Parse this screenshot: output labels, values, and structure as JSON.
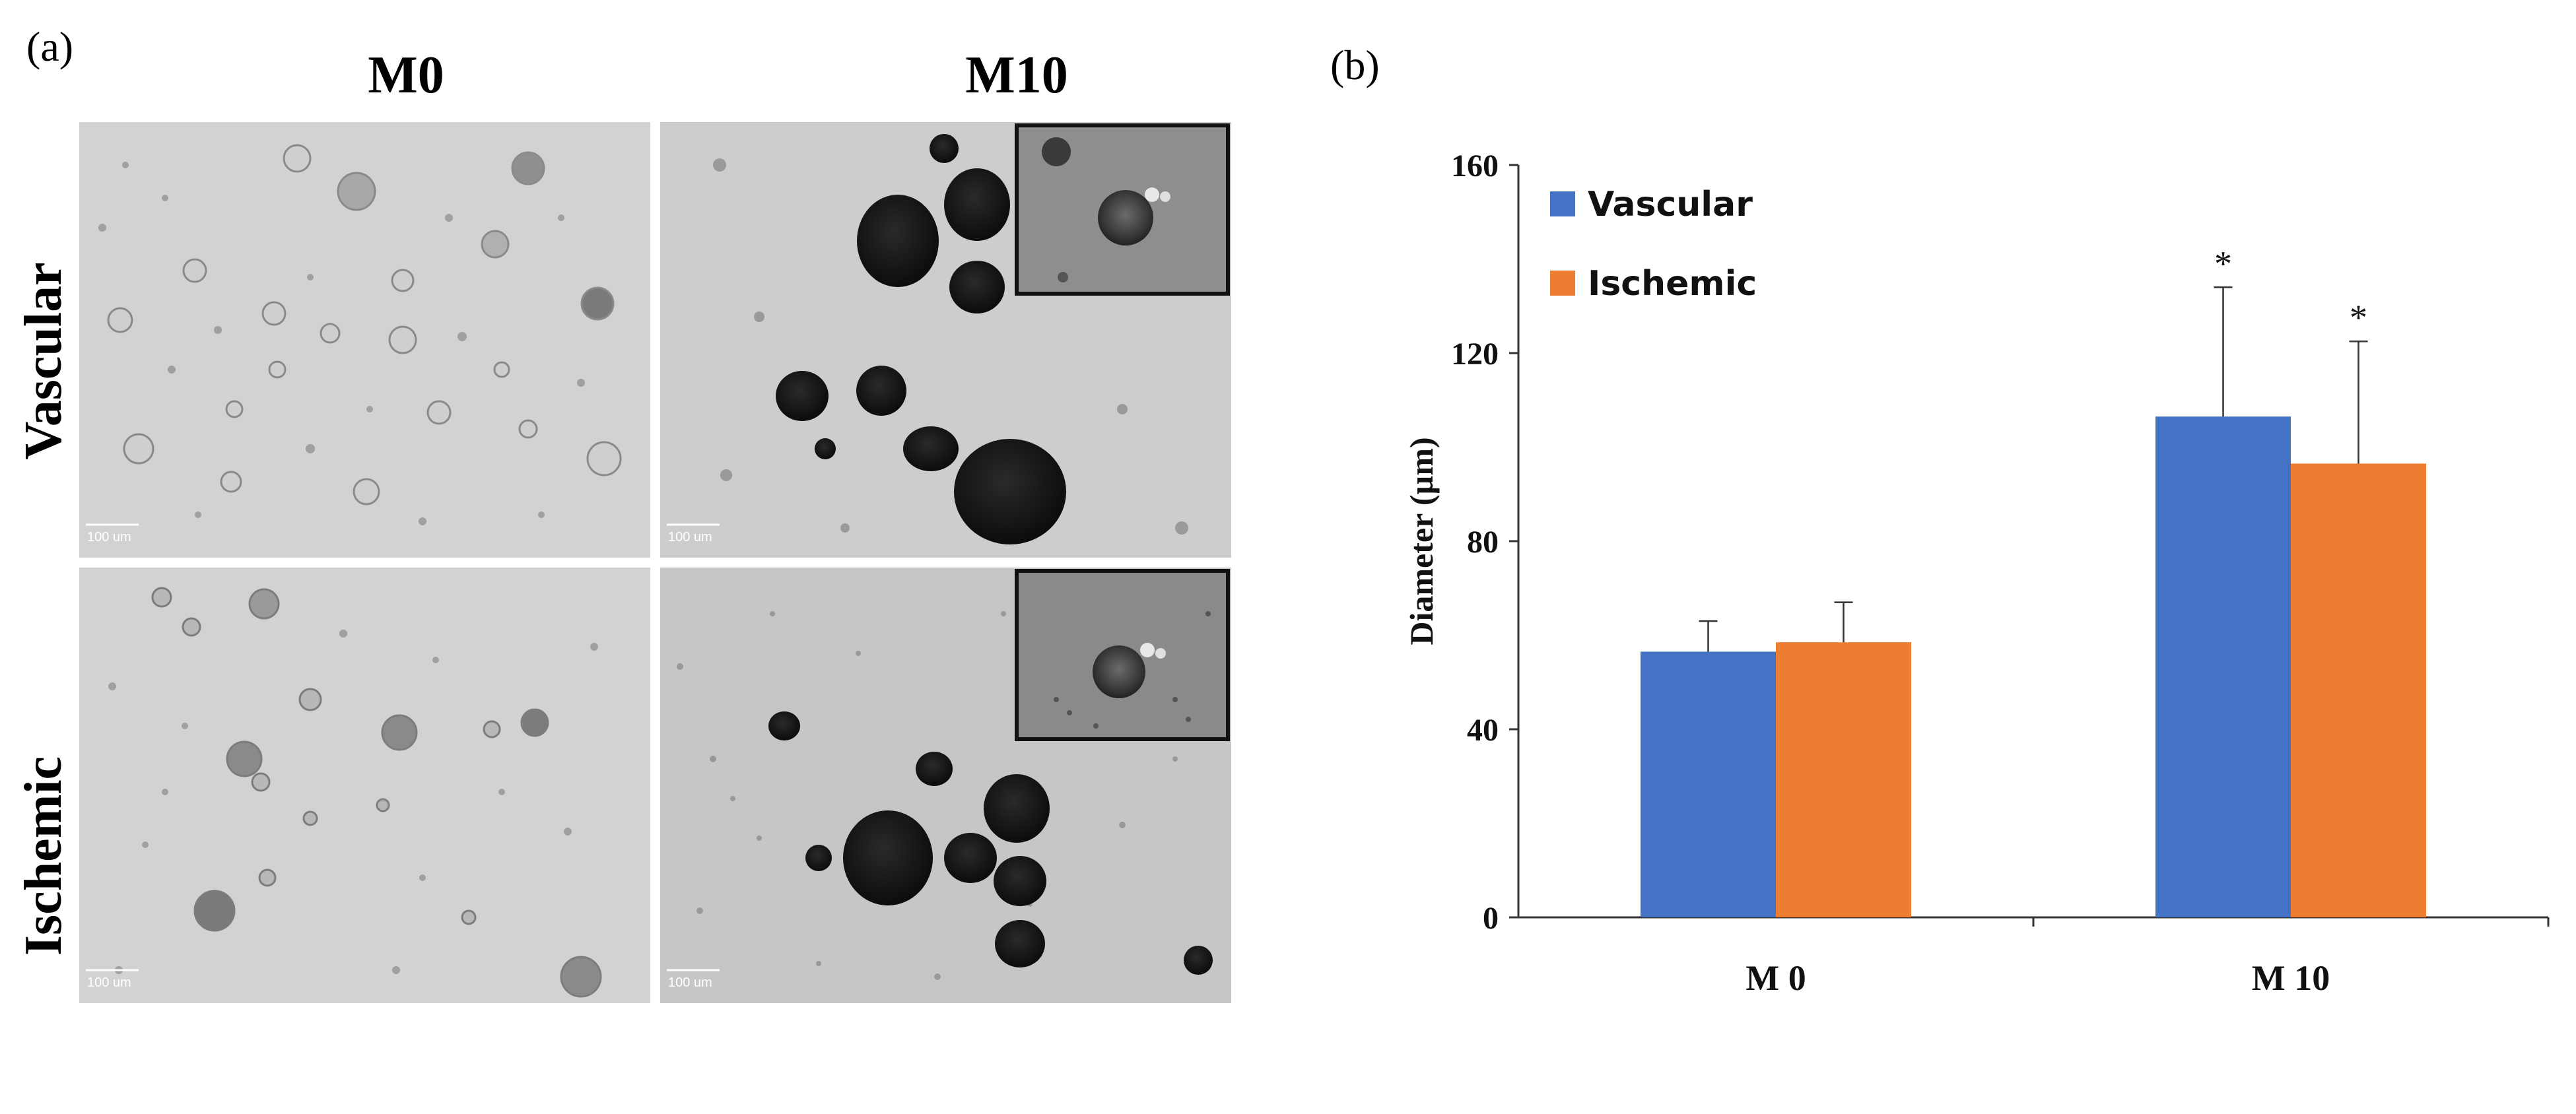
{
  "figure_a": {
    "panel_label": "(a)",
    "column_headers": [
      "M0",
      "M10"
    ],
    "row_labels": [
      "Vascular",
      "Ischemic"
    ],
    "scale_bar_text": "100 um",
    "images": [
      {
        "row": "Vascular",
        "column": "M0",
        "has_inset": false
      },
      {
        "row": "Vascular",
        "column": "M10",
        "has_inset": true
      },
      {
        "row": "Ischemic",
        "column": "M0",
        "has_inset": false
      },
      {
        "row": "Ischemic",
        "column": "M10",
        "has_inset": true
      }
    ]
  },
  "chart_data": {
    "panel_label": "(b)",
    "type": "bar",
    "title": "",
    "xlabel": "",
    "ylabel": "Diameter (µm)",
    "ylim": [
      0,
      160
    ],
    "yticks": [
      0,
      40,
      80,
      120,
      160
    ],
    "categories": [
      "M 0",
      "M 10"
    ],
    "series": [
      {
        "name": "Vascular",
        "color": "#4472C4",
        "values": [
          56.5,
          106.5
        ],
        "error": [
          6.5,
          27.5
        ],
        "significance": [
          "",
          "*"
        ]
      },
      {
        "name": "Ischemic",
        "color": "#ED7D31",
        "values": [
          58.5,
          96.5
        ],
        "error": [
          8.5,
          26.0
        ],
        "significance": [
          "",
          "*"
        ]
      }
    ],
    "legend_position": "top-left",
    "grid": false
  }
}
